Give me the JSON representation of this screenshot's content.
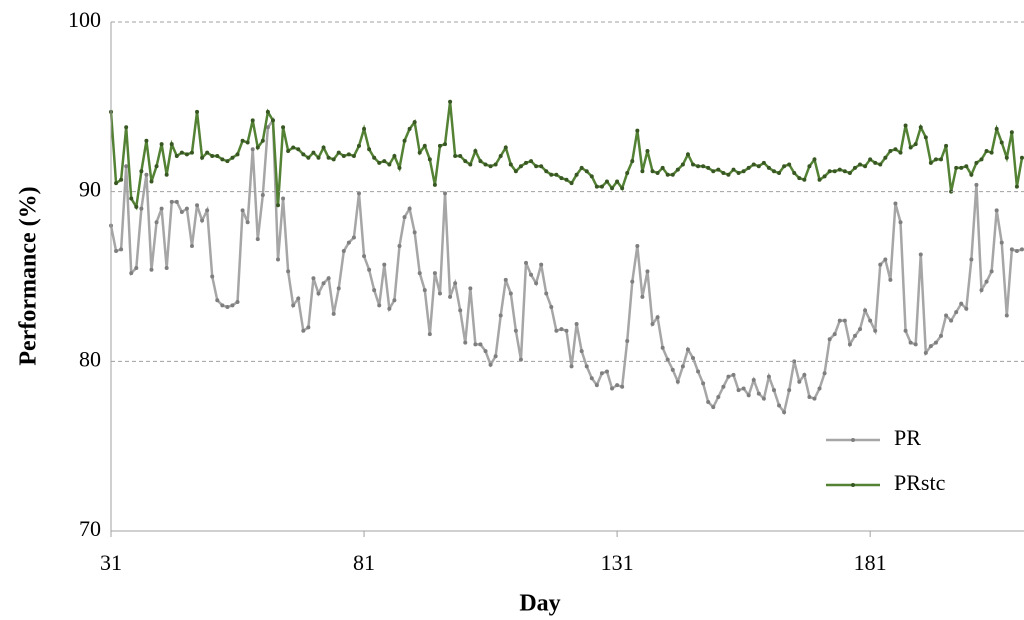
{
  "chart_data": {
    "type": "line",
    "xlabel": "Day",
    "ylabel": "Performance (%)",
    "x": [
      31,
      32,
      33,
      34,
      35,
      36,
      37,
      38,
      39,
      40,
      41,
      42,
      43,
      44,
      45,
      46,
      47,
      48,
      49,
      50,
      51,
      52,
      53,
      54,
      55,
      56,
      57,
      58,
      59,
      60,
      61,
      62,
      63,
      64,
      65,
      66,
      67,
      68,
      69,
      70,
      71,
      72,
      73,
      74,
      75,
      76,
      77,
      78,
      79,
      80,
      81,
      82,
      83,
      84,
      85,
      86,
      87,
      88,
      89,
      90,
      91,
      92,
      93,
      94,
      95,
      96,
      97,
      98,
      99,
      100,
      101,
      102,
      103,
      104,
      105,
      106,
      107,
      108,
      109,
      110,
      111,
      112,
      113,
      114,
      115,
      116,
      117,
      118,
      119,
      120,
      121,
      122,
      123,
      124,
      125,
      126,
      127,
      128,
      129,
      130,
      131,
      132,
      133,
      134,
      135,
      136,
      137,
      138,
      139,
      140,
      141,
      142,
      143,
      144,
      145,
      146,
      147,
      148,
      149,
      150,
      151,
      152,
      153,
      154,
      155,
      156,
      157,
      158,
      159,
      160,
      161,
      162,
      163,
      164,
      165,
      166,
      167,
      168,
      169,
      170,
      171,
      172,
      173,
      174,
      175,
      176,
      177,
      178,
      179,
      180,
      181,
      182,
      183,
      184,
      185,
      186,
      187,
      188,
      189,
      190,
      191,
      192,
      193,
      194,
      195,
      196,
      197,
      198,
      199,
      200,
      201,
      202,
      203,
      204,
      205,
      206,
      207,
      208,
      209,
      210,
      211
    ],
    "series": [
      {
        "name": "PR",
        "color": "#a6a6a6",
        "marker_color": "#7f7f7f",
        "values": [
          88,
          86.5,
          86.6,
          91.5,
          85.2,
          85.5,
          89,
          91,
          85.4,
          88.2,
          89,
          85.5,
          89.4,
          89.4,
          88.8,
          89,
          86.8,
          89.2,
          88.3,
          88.9,
          85,
          83.6,
          83.3,
          83.2,
          83.3,
          83.5,
          88.9,
          88.2,
          92.5,
          87.2,
          89.8,
          93.8,
          94.2,
          86,
          89.6,
          85.3,
          83.3,
          83.7,
          81.8,
          82,
          84.9,
          84,
          84.6,
          84.9,
          82.8,
          84.3,
          86.5,
          87,
          87.3,
          89.9,
          86.2,
          85.4,
          84.2,
          83.3,
          85.7,
          83.1,
          83.6,
          86.8,
          88.5,
          89,
          87.6,
          85.2,
          84.2,
          81.6,
          85.2,
          84,
          89.9,
          83.8,
          84.6,
          83,
          81.1,
          84.3,
          81,
          81,
          80.6,
          79.8,
          80.3,
          82.7,
          84.8,
          84,
          81.8,
          80.1,
          85.8,
          85.1,
          84.6,
          85.7,
          84,
          83.2,
          81.8,
          81.9,
          81.8,
          79.7,
          82.2,
          80.6,
          79.7,
          79,
          78.6,
          79.3,
          79.4,
          78.4,
          78.6,
          78.5,
          81.2,
          84.7,
          86.8,
          83.8,
          85.3,
          82.2,
          82.6,
          80.8,
          80.1,
          79.5,
          78.8,
          79.7,
          80.7,
          80.2,
          79.4,
          78.7,
          77.6,
          77.3,
          77.9,
          78.5,
          79.1,
          79.2,
          78.3,
          78.4,
          78,
          78.9,
          78.1,
          77.8,
          79.1,
          78.3,
          77.4,
          77,
          78.3,
          80,
          78.8,
          79.2,
          77.9,
          77.8,
          78.4,
          79.3,
          81.3,
          81.6,
          82.4,
          82.4,
          81,
          81.5,
          81.9,
          83,
          82.4,
          81.8,
          85.7,
          86,
          84.8,
          89.3,
          88.2,
          81.8,
          81.1,
          81,
          86.3,
          80.5,
          80.9,
          81.1,
          81.5,
          82.7,
          82.4,
          82.9,
          83.4,
          83.1,
          86,
          90.4,
          84.2,
          84.7,
          85.3,
          88.9,
          87,
          82.7,
          86.6,
          86.5,
          86.6
        ]
      },
      {
        "name": "PRstc",
        "color": "#548235",
        "marker_color": "#385723",
        "values": [
          94.7,
          90.5,
          90.7,
          93.8,
          89.6,
          89.1,
          91.2,
          93,
          90.6,
          91.5,
          92.8,
          91,
          92.8,
          92.1,
          92.3,
          92.2,
          92.3,
          94.7,
          92,
          92.3,
          92.1,
          92.1,
          91.9,
          91.8,
          92,
          92.2,
          93,
          92.9,
          94.2,
          92.6,
          93,
          94.7,
          94.2,
          89.2,
          93.8,
          92.4,
          92.6,
          92.5,
          92.2,
          92,
          92.3,
          92,
          92.6,
          92,
          91.9,
          92.3,
          92.1,
          92.2,
          92.1,
          92.7,
          93.7,
          92.5,
          92,
          91.7,
          91.8,
          91.6,
          92.1,
          91.4,
          93,
          93.7,
          94.1,
          92.3,
          92.7,
          91.9,
          90.4,
          92.7,
          92.8,
          95.3,
          92.1,
          92.1,
          91.8,
          91.6,
          92.4,
          91.8,
          91.6,
          91.5,
          91.6,
          92.1,
          92.6,
          91.6,
          91.2,
          91.5,
          91.7,
          91.8,
          91.5,
          91.5,
          91.2,
          91,
          91,
          90.8,
          90.7,
          90.5,
          91,
          91.4,
          91.2,
          90.9,
          90.3,
          90.3,
          90.6,
          90.2,
          90.6,
          90.2,
          91.1,
          91.8,
          93.6,
          91.2,
          92.4,
          91.2,
          91.1,
          91.4,
          91,
          91,
          91.3,
          91.6,
          92.2,
          91.6,
          91.5,
          91.5,
          91.4,
          91.2,
          91.3,
          91.1,
          91,
          91.3,
          91.1,
          91.2,
          91.4,
          91.6,
          91.5,
          91.7,
          91.4,
          91.2,
          91.1,
          91.5,
          91.6,
          91.1,
          90.8,
          90.7,
          91.5,
          91.9,
          90.7,
          90.9,
          91.2,
          91.2,
          91.3,
          91.2,
          91.1,
          91.4,
          91.6,
          91.5,
          91.9,
          91.7,
          91.6,
          92,
          92.4,
          92.5,
          92.3,
          93.9,
          92.6,
          92.8,
          93.8,
          93.2,
          91.7,
          91.9,
          91.9,
          92.7,
          90,
          91.4,
          91.4,
          91.5,
          91,
          91.7,
          91.9,
          92.4,
          92.3,
          93.7,
          92.9,
          92,
          93.5,
          90.3,
          92
        ]
      }
    ],
    "xlim": [
      31,
      211.4
    ],
    "xticks": [
      31,
      81,
      131,
      181
    ],
    "ylim": [
      70,
      100
    ],
    "yticks": [
      70,
      80,
      90,
      100
    ],
    "grid": true,
    "legend": "lower right"
  }
}
